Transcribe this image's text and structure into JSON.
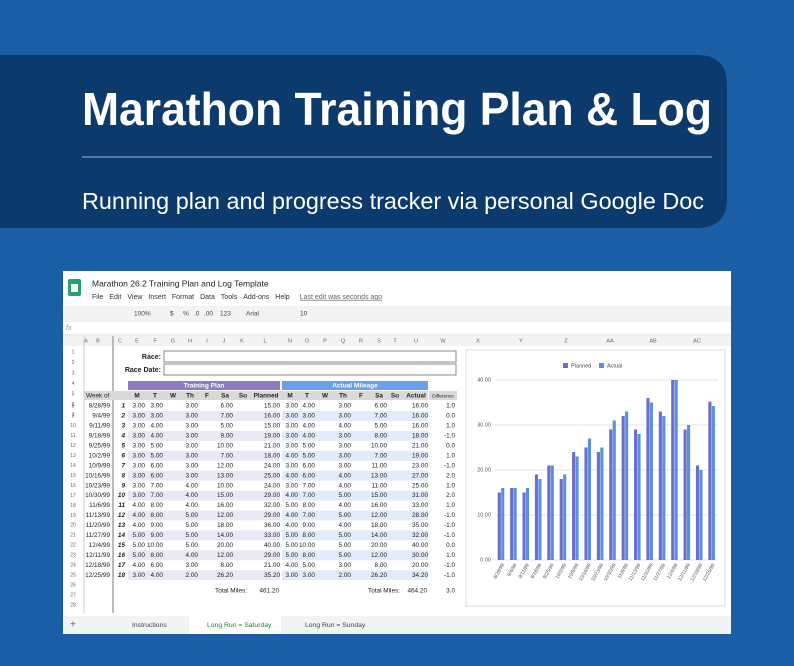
{
  "banner": {
    "title": "Marathon Training Plan & Log",
    "subtitle": "Running plan and progress tracker via personal Google Doc"
  },
  "sheet": {
    "doc_title": "Marathon 26.2 Training Plan and Log Template",
    "menu": [
      "File",
      "Edit",
      "View",
      "Insert",
      "Format",
      "Data",
      "Tools",
      "Add-ons",
      "Help"
    ],
    "last_edit": "Last edit was seconds ago",
    "toolbar": [
      "100%",
      "$",
      "%",
      ".0",
      ".00",
      "123",
      "Arial",
      "10"
    ],
    "columns": [
      "A",
      "B",
      "C",
      "E",
      "F",
      "G",
      "H",
      "I",
      "J",
      "K",
      "L",
      "N",
      "O",
      "P",
      "Q",
      "R",
      "S",
      "T",
      "U",
      "W",
      "X",
      "Y",
      "Z",
      "AA",
      "AB",
      "AC"
    ],
    "row_numbers": [
      1,
      2,
      3,
      4,
      5,
      6,
      7,
      8,
      9,
      10,
      11,
      12,
      13,
      14,
      15,
      16,
      17,
      18,
      19,
      20,
      21,
      22,
      23,
      24,
      25,
      26,
      27,
      28
    ],
    "tabs": [
      "Instructions",
      "Long Run = Saturday",
      "Long Run = Sunday"
    ]
  },
  "table": {
    "race_label": "Race:",
    "race_date_label": "Race Date:",
    "plan_title": "Training Plan",
    "actual_title": "Actual Mileage",
    "week_header": "Week of",
    "diff_header": "Difference",
    "plan_headers": [
      "M",
      "T",
      "W",
      "Th",
      "F",
      "Sa",
      "Su",
      "Planned"
    ],
    "actual_headers": [
      "M",
      "T",
      "W",
      "Th",
      "F",
      "Sa",
      "Su",
      "Actual"
    ],
    "rows": [
      {
        "week": "8/28/99",
        "n": 1,
        "plan": [
          "3.00",
          "3.00",
          null,
          "3.00",
          null,
          "6.00",
          null,
          "15.00"
        ],
        "actual": [
          "3.00",
          "4.00",
          null,
          "3.00",
          null,
          "6.00",
          null,
          "16.00"
        ],
        "diff": "1.0"
      },
      {
        "week": "9/4/99",
        "n": 2,
        "plan": [
          "3.00",
          "3.00",
          null,
          "3.00",
          null,
          "7.00",
          null,
          "16.00"
        ],
        "actual": [
          "3.00",
          "3.00",
          null,
          "3.00",
          null,
          "7.00",
          null,
          "16.00"
        ],
        "diff": "0.0"
      },
      {
        "week": "9/11/99",
        "n": 3,
        "plan": [
          "3.00",
          "4.00",
          null,
          "3.00",
          null,
          "5.00",
          null,
          "15.00"
        ],
        "actual": [
          "3.00",
          "4.00",
          null,
          "4.00",
          null,
          "5.00",
          null,
          "16.00"
        ],
        "diff": "1.0"
      },
      {
        "week": "9/18/99",
        "n": 4,
        "plan": [
          "3.00",
          "4.00",
          null,
          "3.00",
          null,
          "9.00",
          null,
          "19.00"
        ],
        "actual": [
          "3.00",
          "4.00",
          null,
          "3.00",
          null,
          "8.00",
          null,
          "18.00"
        ],
        "diff": "-1.0"
      },
      {
        "week": "9/25/99",
        "n": 5,
        "plan": [
          "3.00",
          "5.00",
          null,
          "3.00",
          null,
          "10.00",
          null,
          "21.00"
        ],
        "actual": [
          "3.00",
          "5.00",
          null,
          "3.00",
          null,
          "10.00",
          null,
          "21.00"
        ],
        "diff": "0.0"
      },
      {
        "week": "10/2/99",
        "n": 6,
        "plan": [
          "3.00",
          "5.00",
          null,
          "3.00",
          null,
          "7.00",
          null,
          "18.00"
        ],
        "actual": [
          "4.00",
          "5.00",
          null,
          "3.00",
          null,
          "7.00",
          null,
          "19.00"
        ],
        "diff": "1.0"
      },
      {
        "week": "10/9/99",
        "n": 7,
        "plan": [
          "3.00",
          "6.00",
          null,
          "3.00",
          null,
          "12.00",
          null,
          "24.00"
        ],
        "actual": [
          "3.00",
          "6.00",
          null,
          "3.00",
          null,
          "11.00",
          null,
          "23.00"
        ],
        "diff": "-1.0"
      },
      {
        "week": "10/16/99",
        "n": 8,
        "plan": [
          "3.00",
          "6.00",
          null,
          "3.00",
          null,
          "13.00",
          null,
          "25.00"
        ],
        "actual": [
          "4.00",
          "6.00",
          null,
          "4.00",
          null,
          "13.00",
          null,
          "27.00"
        ],
        "diff": "2.0"
      },
      {
        "week": "10/23/99",
        "n": 9,
        "plan": [
          "3.00",
          "7.00",
          null,
          "4.00",
          null,
          "10.00",
          null,
          "24.00"
        ],
        "actual": [
          "3.00",
          "7.00",
          null,
          "4.00",
          null,
          "11.00",
          null,
          "25.00"
        ],
        "diff": "1.0"
      },
      {
        "week": "10/30/99",
        "n": 10,
        "plan": [
          "3.00",
          "7.00",
          null,
          "4.00",
          null,
          "15.00",
          null,
          "29.00"
        ],
        "actual": [
          "4.00",
          "7.00",
          null,
          "5.00",
          null,
          "15.00",
          null,
          "31.00"
        ],
        "diff": "2.0"
      },
      {
        "week": "11/6/99",
        "n": 11,
        "plan": [
          "4.00",
          "8.00",
          null,
          "4.00",
          null,
          "16.00",
          null,
          "32.00"
        ],
        "actual": [
          "5.00",
          "8.00",
          null,
          "4.00",
          null,
          "16.00",
          null,
          "33.00"
        ],
        "diff": "1.0"
      },
      {
        "week": "11/13/99",
        "n": 12,
        "plan": [
          "4.00",
          "8.00",
          null,
          "5.00",
          null,
          "12.00",
          null,
          "29.00"
        ],
        "actual": [
          "4.00",
          "7.00",
          null,
          "5.00",
          null,
          "12.00",
          null,
          "28.00"
        ],
        "diff": "-1.0"
      },
      {
        "week": "11/20/99",
        "n": 13,
        "plan": [
          "4.00",
          "9.00",
          null,
          "5.00",
          null,
          "18.00",
          null,
          "36.00"
        ],
        "actual": [
          "4.00",
          "9.00",
          null,
          "4.00",
          null,
          "18.00",
          null,
          "35.00"
        ],
        "diff": "-1.0"
      },
      {
        "week": "11/27/99",
        "n": 14,
        "plan": [
          "5.00",
          "9.00",
          null,
          "5.00",
          null,
          "14.00",
          null,
          "33.00"
        ],
        "actual": [
          "5.00",
          "8.00",
          null,
          "5.00",
          null,
          "14.00",
          null,
          "32.00"
        ],
        "diff": "-1.0"
      },
      {
        "week": "12/4/99",
        "n": 15,
        "plan": [
          "5.00",
          "10.00",
          null,
          "5.00",
          null,
          "20.00",
          null,
          "40.00"
        ],
        "actual": [
          "5.00",
          "10.00",
          null,
          "5.00",
          null,
          "20.00",
          null,
          "40.00"
        ],
        "diff": "0.0"
      },
      {
        "week": "12/11/99",
        "n": 16,
        "plan": [
          "5.00",
          "8.00",
          null,
          "4.00",
          null,
          "12.00",
          null,
          "29.00"
        ],
        "actual": [
          "5.00",
          "8.00",
          null,
          "5.00",
          null,
          "12.00",
          null,
          "30.00"
        ],
        "diff": "1.0"
      },
      {
        "week": "12/18/99",
        "n": 17,
        "plan": [
          "4.00",
          "6.00",
          null,
          "3.00",
          null,
          "8.00",
          null,
          "21.00"
        ],
        "actual": [
          "4.00",
          "5.00",
          null,
          "3.00",
          null,
          "8.00",
          null,
          "20.00"
        ],
        "diff": "-1.0"
      },
      {
        "week": "12/25/99",
        "n": 18,
        "plan": [
          "3.00",
          "4.00",
          null,
          "2.00",
          null,
          "26.20",
          null,
          "35.20"
        ],
        "actual": [
          "3.00",
          "3.00",
          null,
          "2.00",
          null,
          "26.20",
          null,
          "34.20"
        ],
        "diff": "-1.0"
      }
    ],
    "total_label": "Total Miles:",
    "total_plan": "461.20",
    "total_actual": "464.20",
    "total_diff": "3.0"
  },
  "chart": {
    "ylim": [
      0,
      40
    ],
    "yticks": [
      {
        "value": 0,
        "label": "0.00"
      },
      {
        "value": 10,
        "label": "10.00"
      },
      {
        "value": 20,
        "label": "20.00"
      },
      {
        "value": 30,
        "label": "30.00"
      },
      {
        "value": 40,
        "label": "40.00"
      }
    ],
    "series": [
      {
        "name": "Planned",
        "color": "#6a6fc9"
      },
      {
        "name": "Actual",
        "color": "#5b8fe6"
      }
    ]
  }
}
